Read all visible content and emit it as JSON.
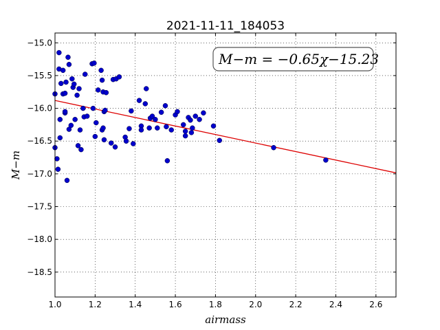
{
  "chart_data": {
    "type": "scatter",
    "title": "2021-11-11_184053",
    "xlabel": "airmass",
    "ylabel": "M−m",
    "xlim": [
      1.0,
      2.7
    ],
    "ylim": [
      -18.88,
      -14.85
    ],
    "x_ticks": [
      1.0,
      1.2,
      1.4,
      1.6,
      1.8,
      2.0,
      2.2,
      2.4,
      2.6
    ],
    "x_tick_labels": [
      "1.0",
      "1.2",
      "1.4",
      "1.6",
      "1.8",
      "2.0",
      "2.2",
      "2.4",
      "2.6"
    ],
    "y_ticks": [
      -15.0,
      -15.5,
      -16.0,
      -16.5,
      -17.0,
      -17.5,
      -18.0,
      -18.5
    ],
    "y_tick_labels": [
      "−15.0",
      "−15.5",
      "−16.0",
      "−16.5",
      "−17.0",
      "−17.5",
      "−18.0",
      "−18.5"
    ],
    "grid": true,
    "annotation": "M−m = −0.65χ−15.23",
    "colors": {
      "points": "#0000cc",
      "fit_line": "#dd0000"
    },
    "fit": {
      "slope": -0.65,
      "intercept": -15.23,
      "x_range": [
        1.0,
        2.7
      ]
    },
    "points": [
      [
        1.0,
        -15.78
      ],
      [
        1.0,
        -16.6
      ],
      [
        1.01,
        -16.77
      ],
      [
        1.015,
        -16.93
      ],
      [
        1.02,
        -15.15
      ],
      [
        1.02,
        -15.4
      ],
      [
        1.025,
        -16.17
      ],
      [
        1.025,
        -16.45
      ],
      [
        1.03,
        -15.62
      ],
      [
        1.04,
        -15.78
      ],
      [
        1.04,
        -15.42
      ],
      [
        1.05,
        -15.77
      ],
      [
        1.05,
        -16.07
      ],
      [
        1.05,
        -16.05
      ],
      [
        1.055,
        -15.6
      ],
      [
        1.06,
        -17.1
      ],
      [
        1.065,
        -15.22
      ],
      [
        1.07,
        -15.33
      ],
      [
        1.07,
        -16.32
      ],
      [
        1.08,
        -16.26
      ],
      [
        1.085,
        -15.55
      ],
      [
        1.09,
        -15.68
      ],
      [
        1.095,
        -15.63
      ],
      [
        1.1,
        -16.17
      ],
      [
        1.11,
        -15.8
      ],
      [
        1.115,
        -16.57
      ],
      [
        1.12,
        -15.7
      ],
      [
        1.125,
        -16.33
      ],
      [
        1.13,
        -16.63
      ],
      [
        1.14,
        -16.0
      ],
      [
        1.145,
        -16.13
      ],
      [
        1.15,
        -15.48
      ],
      [
        1.16,
        -16.12
      ],
      [
        1.185,
        -15.32
      ],
      [
        1.19,
        -16.0
      ],
      [
        1.195,
        -15.31
      ],
      [
        1.2,
        -16.43
      ],
      [
        1.205,
        -16.22
      ],
      [
        1.215,
        -15.72
      ],
      [
        1.23,
        -15.42
      ],
      [
        1.235,
        -15.57
      ],
      [
        1.235,
        -16.33
      ],
      [
        1.24,
        -16.3
      ],
      [
        1.24,
        -15.75
      ],
      [
        1.245,
        -16.05
      ],
      [
        1.245,
        -16.48
      ],
      [
        1.25,
        -16.03
      ],
      [
        1.255,
        -15.76
      ],
      [
        1.28,
        -16.53
      ],
      [
        1.29,
        -15.56
      ],
      [
        1.3,
        -16.59
      ],
      [
        1.305,
        -15.55
      ],
      [
        1.32,
        -15.52
      ],
      [
        1.35,
        -16.44
      ],
      [
        1.355,
        -16.5
      ],
      [
        1.37,
        -16.31
      ],
      [
        1.38,
        -16.04
      ],
      [
        1.39,
        -16.54
      ],
      [
        1.42,
        -15.88
      ],
      [
        1.43,
        -16.27
      ],
      [
        1.43,
        -16.33
      ],
      [
        1.45,
        -15.93
      ],
      [
        1.455,
        -15.7
      ],
      [
        1.47,
        -16.3
      ],
      [
        1.475,
        -16.15
      ],
      [
        1.485,
        -16.12
      ],
      [
        1.5,
        -16.17
      ],
      [
        1.51,
        -16.3
      ],
      [
        1.53,
        -16.06
      ],
      [
        1.55,
        -15.96
      ],
      [
        1.555,
        -16.28
      ],
      [
        1.56,
        -16.8
      ],
      [
        1.58,
        -16.33
      ],
      [
        1.6,
        -16.1
      ],
      [
        1.61,
        -16.05
      ],
      [
        1.64,
        -16.25
      ],
      [
        1.65,
        -16.42
      ],
      [
        1.65,
        -16.35
      ],
      [
        1.665,
        -16.14
      ],
      [
        1.675,
        -16.18
      ],
      [
        1.68,
        -16.37
      ],
      [
        1.685,
        -16.3
      ],
      [
        1.7,
        -16.12
      ],
      [
        1.72,
        -16.17
      ],
      [
        1.74,
        -16.07
      ],
      [
        1.79,
        -16.27
      ],
      [
        1.82,
        -16.49
      ],
      [
        2.09,
        -16.6
      ],
      [
        2.35,
        -16.79
      ]
    ]
  }
}
